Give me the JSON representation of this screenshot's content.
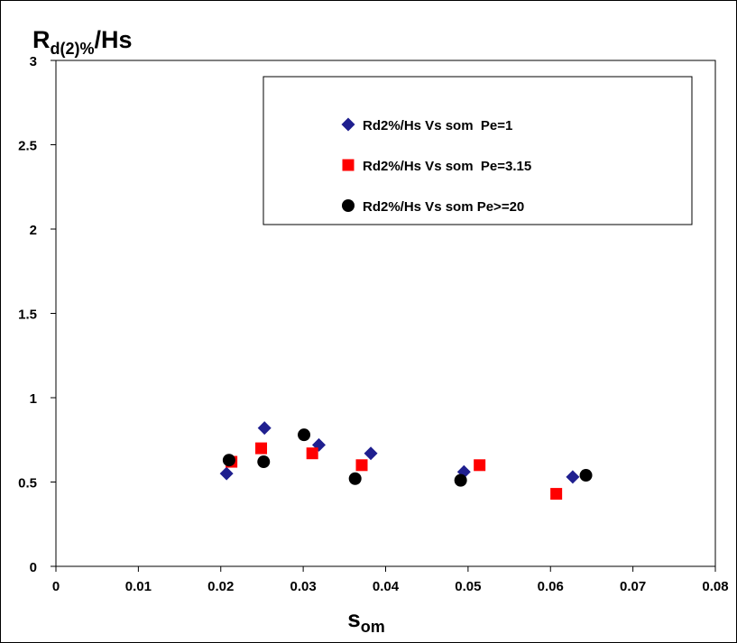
{
  "chart_data": {
    "type": "scatter",
    "title": "",
    "ylabel_main": "R",
    "ylabel_sub": "d(2)%",
    "ylabel_tail": "/Hs",
    "xlabel_main": "s",
    "xlabel_sub": "om",
    "xlim": [
      0,
      0.08
    ],
    "ylim": [
      0,
      3
    ],
    "x_ticks": [
      "0",
      "0.01",
      "0.02",
      "0.03",
      "0.04",
      "0.05",
      "0.06",
      "0.07",
      "0.08"
    ],
    "y_ticks": [
      "0",
      "0.5",
      "1",
      "1.5",
      "2",
      "2.5",
      "3"
    ],
    "x_tick_values": [
      0,
      0.01,
      0.02,
      0.03,
      0.04,
      0.05,
      0.06,
      0.07,
      0.08
    ],
    "y_tick_values": [
      0,
      0.5,
      1,
      1.5,
      2,
      2.5,
      3
    ],
    "grid": false,
    "legend_position": "top-right",
    "series": [
      {
        "name": "Rd2%/Hs Vs som  Pe=1",
        "marker": "diamond",
        "color": "#1f1f8f",
        "points": [
          {
            "x": 0.0207,
            "y": 0.55
          },
          {
            "x": 0.0253,
            "y": 0.82
          },
          {
            "x": 0.0319,
            "y": 0.72
          },
          {
            "x": 0.0382,
            "y": 0.67
          },
          {
            "x": 0.0495,
            "y": 0.56
          },
          {
            "x": 0.0627,
            "y": 0.53
          }
        ]
      },
      {
        "name": "Rd2%/Hs Vs som  Pe=3.15",
        "marker": "square",
        "color": "#ff0000",
        "points": [
          {
            "x": 0.0213,
            "y": 0.62
          },
          {
            "x": 0.0249,
            "y": 0.7
          },
          {
            "x": 0.0311,
            "y": 0.67
          },
          {
            "x": 0.0371,
            "y": 0.6
          },
          {
            "x": 0.0514,
            "y": 0.6
          },
          {
            "x": 0.0607,
            "y": 0.43
          }
        ]
      },
      {
        "name": "Rd2%/Hs Vs som Pe>=20",
        "marker": "circle",
        "color": "#000000",
        "points": [
          {
            "x": 0.021,
            "y": 0.63
          },
          {
            "x": 0.0252,
            "y": 0.62
          },
          {
            "x": 0.0301,
            "y": 0.78
          },
          {
            "x": 0.0363,
            "y": 0.52
          },
          {
            "x": 0.0491,
            "y": 0.51
          },
          {
            "x": 0.0643,
            "y": 0.54
          }
        ]
      }
    ]
  }
}
